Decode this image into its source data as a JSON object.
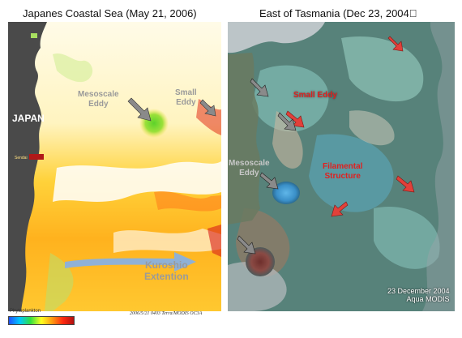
{
  "left_panel": {
    "title": "Japanes Coastal Sea  (May 21, 2006)",
    "labels": {
      "japan": "JAPAN",
      "sendai": "Sendai",
      "mesoscale_eddy_line1": "Mesoscale",
      "mesoscale_eddy_line2": "Eddy",
      "small_eddy_line1": "Small",
      "small_eddy_line2": "Eddy",
      "kuroshio_line1": "Kuroshio",
      "kuroshio_line2": "Extention"
    },
    "credit": "2006/5/21 0403 Terra/MODIS OC3A",
    "scale_label": "Phytoplankton",
    "colors": {
      "land": "#4a4a4a",
      "label_gray": "#9a9a9a",
      "japan_text": "#ffffff",
      "arrow_fill": "#8a8a8a",
      "current_arrow": "#8fb1d6"
    }
  },
  "right_panel": {
    "title": "East of Tasmania (Dec 23, 2004\u0000",
    "labels": {
      "small_eddy": "Small Eddy",
      "mesoscale_eddy_line1": "Mesoscale",
      "mesoscale_eddy_line2": "Eddy",
      "filamental_line1": "Filamental",
      "filamental_line2": "Structure",
      "date_stamp": "23 December 2004",
      "sensor": "Aqua MODIS"
    },
    "colors": {
      "red_label": "#e0201f",
      "gray_label": "#c8c8c8",
      "red_arrow": "#e2403a",
      "gray_arrow": "#7a7a7a"
    }
  }
}
